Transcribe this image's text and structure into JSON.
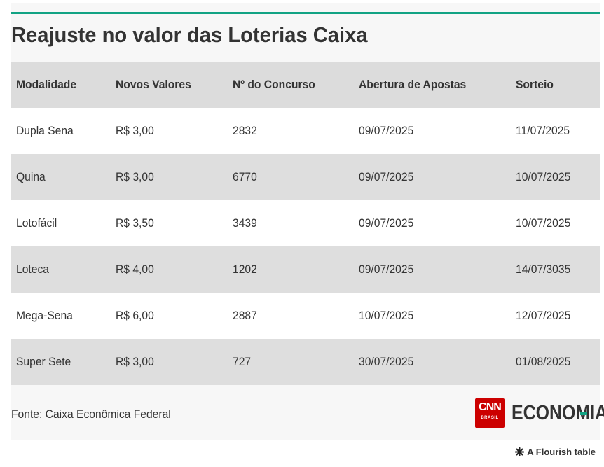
{
  "title": "Reajuste no valor das Loterias Caixa",
  "colors": {
    "accent": "#12a384",
    "header_bg": "#dcdcdc",
    "row_alt_bg": "#dedede",
    "cnn_red": "#cc0000"
  },
  "chart_data": {
    "type": "table",
    "title": "Reajuste no valor das Loterias Caixa",
    "columns": [
      "Modalidade",
      "Novos Valores",
      "Nº do Concurso",
      "Abertura de Apostas",
      "Sorteio"
    ],
    "rows": [
      [
        "Dupla Sena",
        "R$ 3,00",
        "2832",
        "09/07/2025",
        "11/07/2025"
      ],
      [
        "Quina",
        "R$ 3,00",
        "6770",
        "09/07/2025",
        "10/07/2025"
      ],
      [
        "Lotofácil",
        "R$ 3,50",
        "3439",
        "09/07/2025",
        "10/07/2025"
      ],
      [
        "Loteca",
        "R$ 4,00",
        "1202",
        "09/07/2025",
        "14/07/3035"
      ],
      [
        "Mega-Sena",
        "R$ 6,00",
        "2887",
        "10/07/2025",
        "12/07/2025"
      ],
      [
        "Super Sete",
        "R$ 3,00",
        "727",
        "30/07/2025",
        "01/08/2025"
      ]
    ]
  },
  "source": "Fonte: Caixa Econômica Federal",
  "brand": {
    "cnn": "CNN",
    "cnn_sub": "BRASIL",
    "section": "ECONOMIA"
  },
  "credit": {
    "icon": "flourish-star-icon",
    "text": "A Flourish table"
  }
}
